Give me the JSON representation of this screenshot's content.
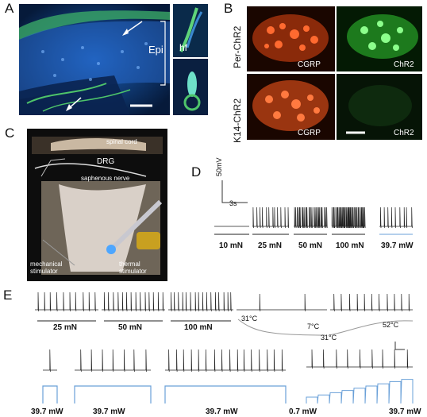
{
  "panels": {
    "A": {
      "letter": "A",
      "epi_label": "Epi",
      "hf_label": "hf"
    },
    "B": {
      "letter": "B",
      "row1": "Per-ChR2",
      "row2": "K14-ChR2",
      "tiles": [
        "CGRP",
        "ChR2",
        "CGRP",
        "ChR2"
      ]
    },
    "C": {
      "letter": "C",
      "spinal_cord": "spinal cord",
      "drg": "DRG",
      "saphenous": "saphenous nerve",
      "mech": "mechanical\nstimulator",
      "thermal": "thermal\nstimulator"
    },
    "D": {
      "letter": "D",
      "scale_v": "50mV",
      "scale_t": "3s",
      "labels": [
        "10 mN",
        "25 mN",
        "50 mN",
        "100 mN",
        "39.7 mW"
      ]
    },
    "E": {
      "letter": "E",
      "top_labels": [
        "25 mN",
        "50 mN",
        "100 mN"
      ],
      "temps": [
        "31°C",
        "7°C",
        "31°C",
        "52°C"
      ],
      "bottom_labels": [
        "39.7 mW",
        "39.7 mW",
        "39.7 mW",
        "0.7 mW",
        "39.7 mW"
      ]
    }
  },
  "colors": {
    "trace": "#222222",
    "light_blue": "#6aa0d8",
    "temp_grey": "#999999"
  }
}
